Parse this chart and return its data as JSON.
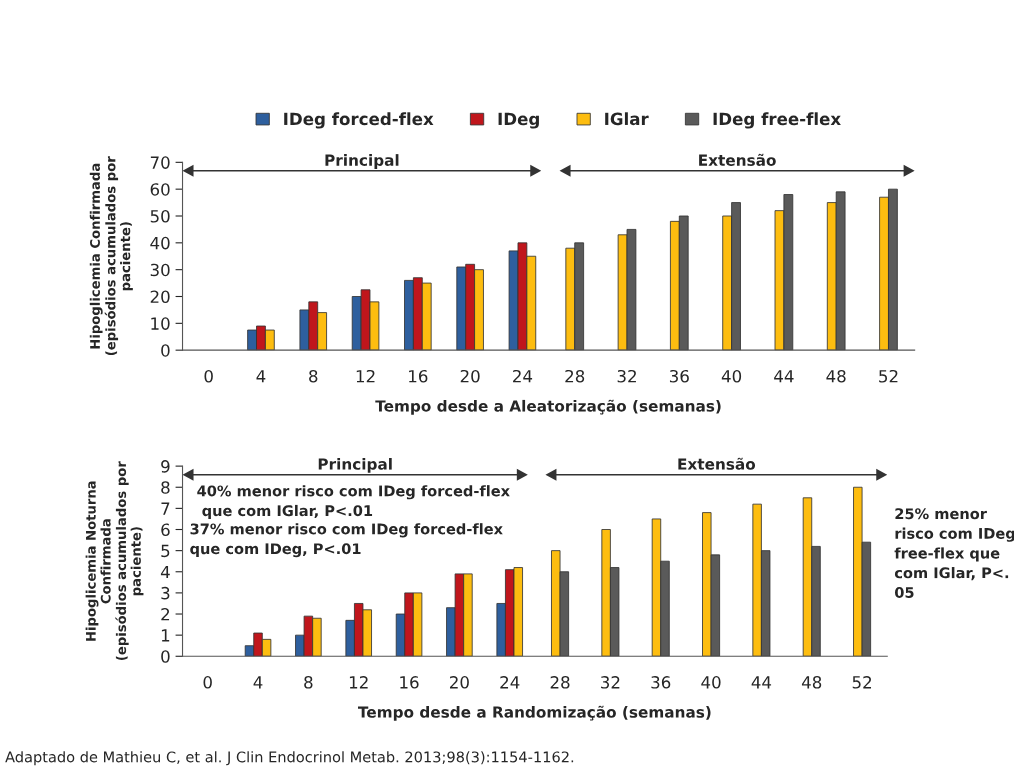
{
  "chart_data": [
    {
      "type": "bar",
      "categories": [
        "0",
        "4",
        "8",
        "12",
        "16",
        "20",
        "24",
        "28",
        "32",
        "36",
        "40",
        "44",
        "48",
        "52"
      ],
      "series": [
        {
          "name": "IDeg forced-flex",
          "color": "#2e5f9e",
          "values": [
            null,
            7.5,
            15,
            20,
            26,
            31,
            37,
            null,
            null,
            null,
            null,
            null,
            null,
            null
          ]
        },
        {
          "name": "IDeg",
          "color": "#c0161c",
          "values": [
            null,
            9,
            18,
            22.5,
            27,
            32,
            40,
            null,
            null,
            null,
            null,
            null,
            null,
            null
          ]
        },
        {
          "name": "IGlar",
          "color": "#fdbd10",
          "values": [
            null,
            7.5,
            14,
            18,
            25,
            30,
            35,
            38,
            43,
            48,
            50,
            52,
            55,
            57
          ]
        },
        {
          "name": "IDeg free-flex",
          "color": "#5a5a5a",
          "values": [
            null,
            null,
            null,
            null,
            null,
            null,
            null,
            40,
            45,
            50,
            55,
            58,
            59,
            60
          ]
        }
      ],
      "ylim": [
        0,
        70
      ],
      "yticks": [
        0,
        10,
        20,
        30,
        40,
        50,
        60,
        70
      ],
      "xlabel": "Tempo desde a Aleatorização (semanas)",
      "ylabel": "Hipoglicemia Confirmada\n(episódios acumulados por\npaciente)",
      "annotations": [
        "Principal",
        "Extensão"
      ],
      "legend": "top",
      "grid": false
    },
    {
      "type": "bar",
      "categories": [
        "0",
        "4",
        "8",
        "12",
        "16",
        "20",
        "24",
        "28",
        "32",
        "36",
        "40",
        "44",
        "48",
        "52"
      ],
      "series": [
        {
          "color": "#2e5f9e",
          "values": [
            null,
            0.5,
            1.0,
            1.7,
            2.0,
            2.3,
            2.5,
            null,
            null,
            null,
            null,
            null,
            null,
            null
          ]
        },
        {
          "color": "#c0161c",
          "values": [
            null,
            1.1,
            1.9,
            2.5,
            3.0,
            3.9,
            4.1,
            null,
            null,
            null,
            null,
            null,
            null,
            null
          ]
        },
        {
          "color": "#fdbd10",
          "values": [
            null,
            0.8,
            1.8,
            2.2,
            3.0,
            3.9,
            4.2,
            5.0,
            6.0,
            6.5,
            6.8,
            7.2,
            7.5,
            8.0
          ]
        },
        {
          "color": "#5a5a5a",
          "values": [
            null,
            null,
            null,
            null,
            null,
            null,
            null,
            4.0,
            4.2,
            4.5,
            4.8,
            5.0,
            5.2,
            5.4
          ]
        }
      ],
      "ylim": [
        0,
        9
      ],
      "yticks": [
        0,
        1,
        2,
        3,
        4,
        5,
        6,
        7,
        8,
        9
      ],
      "xlabel": "Tempo desde a Randomização (semanas)",
      "ylabel": "Hipoglicemia Noturna\nConfirmada\n(episódios acumulados por\npaciente)",
      "annotations": [
        "Principal",
        "Extensão",
        "40% menor risco com IDeg forced-flex\n que com IGlar, P<.01",
        "37% menor risco com IDeg forced-flex\nque com IDeg, P<.01",
        "25% menor\nrisco com IDeg\nfree-flex que\ncom IGlar, P<.\n05",
        "Adaptado de Mathieu C, et al. J Clin Endocrinol Metab. 2013;98(3):1154-1162."
      ],
      "legend": false,
      "grid": false
    }
  ]
}
